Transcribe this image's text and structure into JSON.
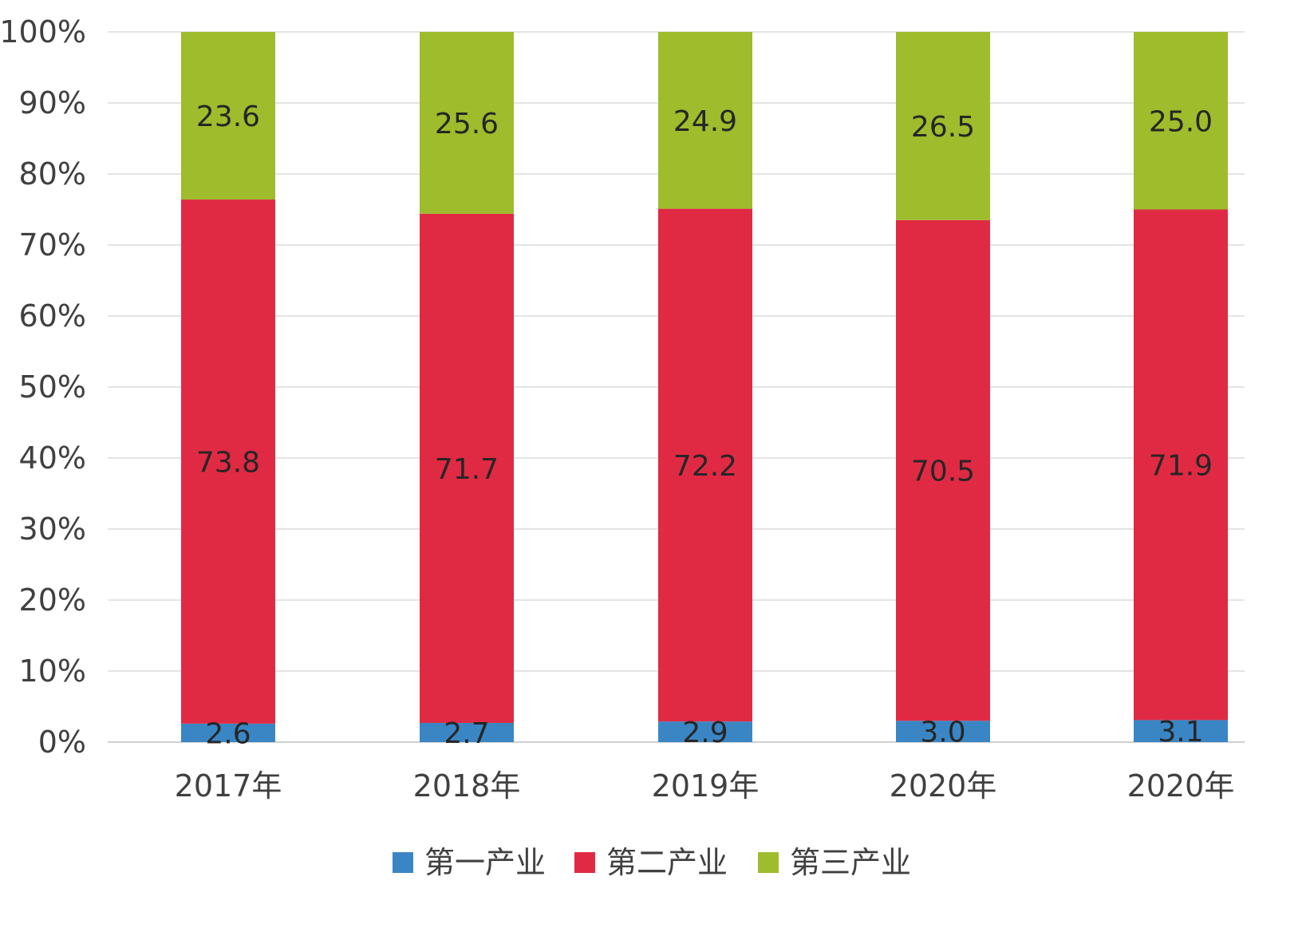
{
  "chart_data": {
    "type": "bar",
    "stacked": "percent",
    "categories": [
      "2017年",
      "2018年",
      "2019年",
      "2020年",
      "2020年"
    ],
    "series": [
      {
        "name": "第一产业",
        "color": "#3a86c4",
        "values": [
          2.6,
          2.7,
          2.9,
          3.0,
          3.1
        ]
      },
      {
        "name": "第二产业",
        "color": "#e02a44",
        "values": [
          73.8,
          71.7,
          72.2,
          70.5,
          71.9
        ]
      },
      {
        "name": "第三产业",
        "color": "#9ebc2c",
        "values": [
          23.6,
          25.6,
          24.9,
          26.5,
          25.0
        ]
      }
    ],
    "y_ticks": [
      "0%",
      "10%",
      "20%",
      "30%",
      "40%",
      "50%",
      "60%",
      "70%",
      "80%",
      "90%",
      "100%"
    ],
    "ylim": [
      0,
      100
    ],
    "grid": true,
    "legend_position": "bottom"
  }
}
